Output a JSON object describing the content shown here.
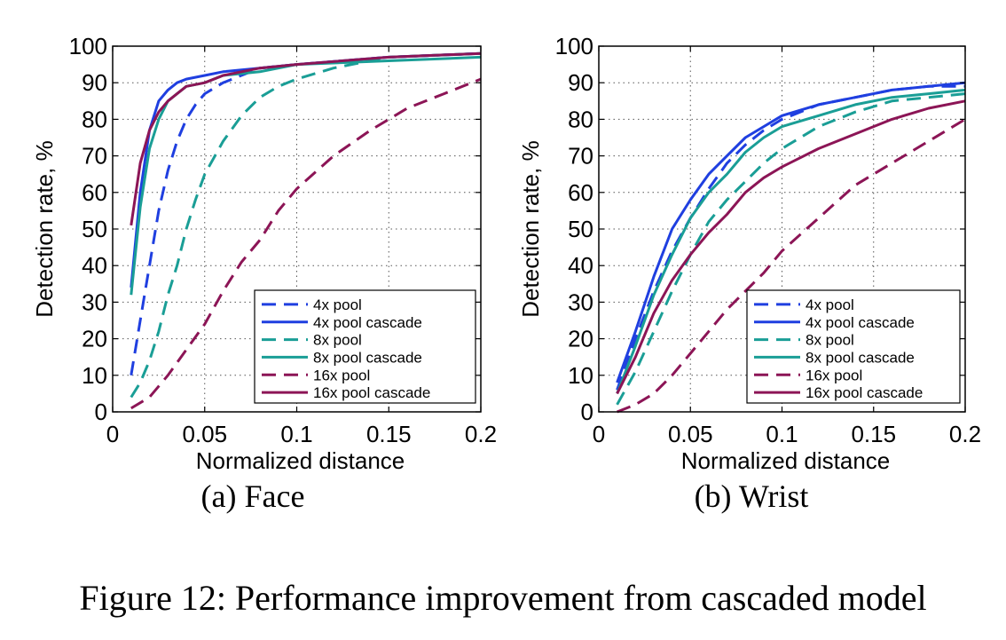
{
  "figure": {
    "caption": "Figure 12: Performance improvement from cascaded model"
  },
  "colors": {
    "4x": "#1f3fe0",
    "8x": "#1a9e96",
    "16x": "#8c1556"
  },
  "chart_data": [
    {
      "type": "line",
      "caption": "(a) Face",
      "xlabel": "Normalized distance",
      "ylabel": "Detection rate, %",
      "xlim": [
        0,
        0.2
      ],
      "ylim": [
        0,
        100
      ],
      "xticks": [
        "0",
        "0.05",
        "0.1",
        "0.15",
        "0.2"
      ],
      "yticks": [
        "0",
        "10",
        "20",
        "30",
        "40",
        "50",
        "60",
        "70",
        "80",
        "90",
        "100"
      ],
      "grid": true,
      "legend_position": "bottom-right",
      "series": [
        {
          "name": "4x pool",
          "style": "dashed",
          "color": "#1f3fe0",
          "x": [
            0.01,
            0.015,
            0.02,
            0.025,
            0.03,
            0.035,
            0.04,
            0.045,
            0.05,
            0.06,
            0.08,
            0.1,
            0.15,
            0.2
          ],
          "y": [
            10,
            25,
            40,
            55,
            66,
            74,
            80,
            84,
            87,
            90,
            94,
            95,
            97,
            98
          ]
        },
        {
          "name": "4x pool cascade",
          "style": "solid",
          "color": "#1f3fe0",
          "x": [
            0.01,
            0.015,
            0.02,
            0.025,
            0.03,
            0.035,
            0.04,
            0.05,
            0.06,
            0.08,
            0.1,
            0.15,
            0.2
          ],
          "y": [
            34,
            60,
            77,
            85,
            88,
            90,
            91,
            92,
            93,
            94,
            95,
            97,
            98
          ]
        },
        {
          "name": "8x pool",
          "style": "dashed",
          "color": "#1a9e96",
          "x": [
            0.01,
            0.015,
            0.02,
            0.025,
            0.03,
            0.035,
            0.04,
            0.045,
            0.05,
            0.06,
            0.07,
            0.08,
            0.09,
            0.1,
            0.12,
            0.15,
            0.2
          ],
          "y": [
            4,
            8,
            14,
            22,
            32,
            40,
            50,
            58,
            65,
            74,
            81,
            86,
            89,
            91,
            94,
            97,
            98
          ]
        },
        {
          "name": "8x pool cascade",
          "style": "solid",
          "color": "#1a9e96",
          "x": [
            0.01,
            0.015,
            0.02,
            0.025,
            0.03,
            0.035,
            0.04,
            0.05,
            0.06,
            0.08,
            0.1,
            0.15,
            0.2
          ],
          "y": [
            32,
            56,
            72,
            80,
            85,
            87,
            89,
            90,
            92,
            93,
            95,
            96,
            97
          ]
        },
        {
          "name": "16x pool",
          "style": "dashed",
          "color": "#8c1556",
          "x": [
            0.01,
            0.02,
            0.03,
            0.04,
            0.05,
            0.06,
            0.07,
            0.08,
            0.09,
            0.1,
            0.12,
            0.14,
            0.16,
            0.18,
            0.2
          ],
          "y": [
            1,
            4,
            10,
            17,
            24,
            33,
            41,
            47,
            55,
            61,
            70,
            77,
            83,
            87,
            91
          ]
        },
        {
          "name": "16x pool cascade",
          "style": "solid",
          "color": "#8c1556",
          "x": [
            0.01,
            0.015,
            0.02,
            0.025,
            0.03,
            0.035,
            0.04,
            0.05,
            0.06,
            0.08,
            0.1,
            0.15,
            0.2
          ],
          "y": [
            51,
            68,
            77,
            82,
            85,
            87,
            89,
            90,
            92,
            94,
            95,
            97,
            98
          ]
        }
      ]
    },
    {
      "type": "line",
      "caption": "(b) Wrist",
      "xlabel": "Normalized distance",
      "ylabel": "Detection rate, %",
      "xlim": [
        0,
        0.2
      ],
      "ylim": [
        0,
        100
      ],
      "xticks": [
        "0",
        "0.05",
        "0.1",
        "0.15",
        "0.2"
      ],
      "yticks": [
        "0",
        "10",
        "20",
        "30",
        "40",
        "50",
        "60",
        "70",
        "80",
        "90",
        "100"
      ],
      "grid": true,
      "legend_position": "bottom-right",
      "series": [
        {
          "name": "4x pool",
          "style": "dashed",
          "color": "#1f3fe0",
          "x": [
            0.01,
            0.02,
            0.03,
            0.04,
            0.05,
            0.06,
            0.07,
            0.08,
            0.09,
            0.1,
            0.12,
            0.14,
            0.16,
            0.18,
            0.2
          ],
          "y": [
            6,
            20,
            33,
            44,
            53,
            61,
            68,
            73,
            77,
            80,
            84,
            86,
            88,
            89,
            89
          ]
        },
        {
          "name": "4x pool cascade",
          "style": "solid",
          "color": "#1f3fe0",
          "x": [
            0.01,
            0.02,
            0.03,
            0.04,
            0.05,
            0.06,
            0.07,
            0.08,
            0.09,
            0.1,
            0.12,
            0.14,
            0.16,
            0.18,
            0.2
          ],
          "y": [
            8,
            22,
            37,
            50,
            58,
            65,
            70,
            75,
            78,
            81,
            84,
            86,
            88,
            89,
            90
          ]
        },
        {
          "name": "8x pool",
          "style": "dashed",
          "color": "#1a9e96",
          "x": [
            0.01,
            0.02,
            0.03,
            0.04,
            0.05,
            0.06,
            0.07,
            0.08,
            0.09,
            0.1,
            0.12,
            0.14,
            0.16,
            0.18,
            0.2
          ],
          "y": [
            2,
            11,
            22,
            33,
            43,
            52,
            58,
            63,
            68,
            72,
            78,
            82,
            85,
            86,
            87
          ]
        },
        {
          "name": "8x pool cascade",
          "style": "solid",
          "color": "#1a9e96",
          "x": [
            0.01,
            0.02,
            0.03,
            0.04,
            0.05,
            0.06,
            0.07,
            0.08,
            0.09,
            0.1,
            0.12,
            0.14,
            0.16,
            0.18,
            0.2
          ],
          "y": [
            5,
            18,
            32,
            43,
            53,
            60,
            65,
            71,
            75,
            78,
            81,
            84,
            86,
            87,
            88
          ]
        },
        {
          "name": "16x pool",
          "style": "dashed",
          "color": "#8c1556",
          "x": [
            0.01,
            0.02,
            0.03,
            0.04,
            0.05,
            0.06,
            0.07,
            0.08,
            0.09,
            0.1,
            0.12,
            0.14,
            0.16,
            0.18,
            0.2
          ],
          "y": [
            0,
            2,
            5,
            10,
            16,
            22,
            28,
            33,
            38,
            44,
            53,
            62,
            68,
            74,
            80
          ]
        },
        {
          "name": "16x pool cascade",
          "style": "solid",
          "color": "#8c1556",
          "x": [
            0.01,
            0.02,
            0.03,
            0.04,
            0.05,
            0.06,
            0.07,
            0.08,
            0.09,
            0.1,
            0.12,
            0.14,
            0.16,
            0.18,
            0.2
          ],
          "y": [
            5,
            15,
            27,
            36,
            43,
            49,
            54,
            60,
            64,
            67,
            72,
            76,
            80,
            83,
            85
          ]
        }
      ]
    }
  ]
}
